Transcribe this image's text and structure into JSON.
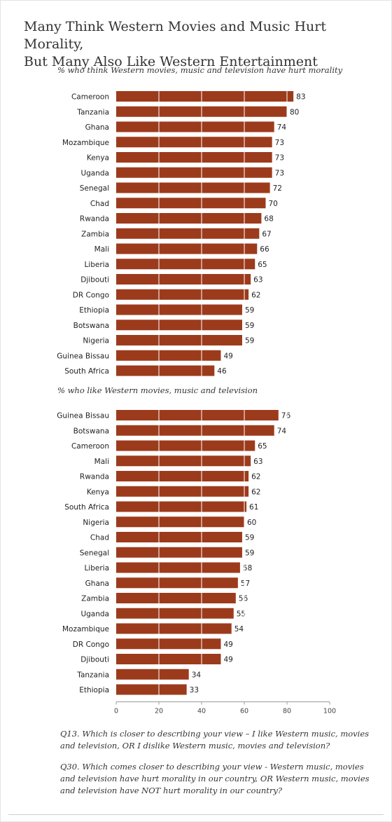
{
  "title_lines": [
    "Many Think Western Movies and Music Hurt Morality,",
    "But Many Also Like Western Entertainment"
  ],
  "notes": {
    "q13": "Q13. Which is closer to describing your view – I like Western music, movies and television, OR I dislike Western music, movies and television?",
    "q30": "Q30. Which comes closer to describing your view - Western music, movies and television have hurt morality in our country, OR Western music, movies and television have NOT hurt morality in our country?"
  },
  "colors": {
    "bar": "#9c3b1c",
    "gridline": "#ffffff",
    "axis": "#999999"
  },
  "chart_data": [
    {
      "type": "bar",
      "orientation": "horizontal",
      "title": "% who think Western movies, music and television have hurt morality",
      "categories": [
        "Cameroon",
        "Tanzania",
        "Ghana",
        "Mozambique",
        "Kenya",
        "Uganda",
        "Senegal",
        "Chad",
        "Rwanda",
        "Zambia",
        "Mali",
        "Liberia",
        "Djibouti",
        "DR Congo",
        "Ethiopia",
        "Botswana",
        "Nigeria",
        "Guinea Bissau",
        "South Africa"
      ],
      "values": [
        83,
        80,
        74,
        73,
        73,
        73,
        72,
        70,
        68,
        67,
        66,
        65,
        63,
        62,
        59,
        59,
        59,
        49,
        46
      ],
      "xlim": [
        0,
        100
      ],
      "data_labels": true
    },
    {
      "type": "bar",
      "orientation": "horizontal",
      "title": "% who like Western movies, music and television",
      "categories": [
        "Guinea Bissau",
        "Botswana",
        "Cameroon",
        "Mali",
        "Rwanda",
        "Kenya",
        "South Africa",
        "Nigeria",
        "Chad",
        "Senegal",
        "Liberia",
        "Ghana",
        "Zambia",
        "Uganda",
        "Mozambique",
        "DR Congo",
        "Djibouti",
        "Tanzania",
        "Ethiopia"
      ],
      "values": [
        76,
        74,
        65,
        63,
        62,
        62,
        61,
        60,
        59,
        59,
        58,
        57,
        56,
        55,
        54,
        49,
        49,
        34,
        33
      ],
      "xlim": [
        0,
        100
      ],
      "xticks": [
        0,
        20,
        40,
        60,
        80,
        100
      ],
      "data_labels": true
    }
  ]
}
